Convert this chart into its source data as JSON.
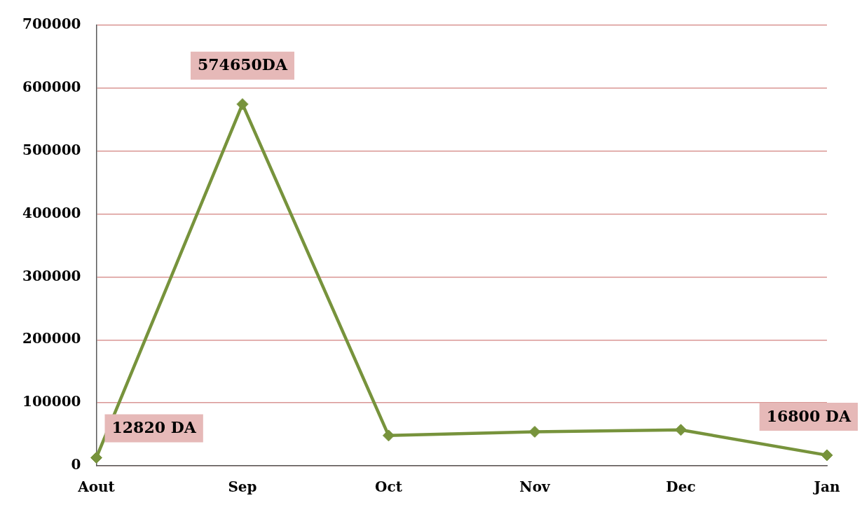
{
  "chart_data": {
    "type": "line",
    "categories": [
      "Aout",
      "Sep",
      "Oct",
      "Nov",
      "Dec",
      "Jan"
    ],
    "series": [
      {
        "color": "#77933c",
        "values": [
          12820,
          574650,
          48000,
          54000,
          57000,
          16800
        ],
        "value_labels": [
          "12820 DA",
          "574650DA",
          null,
          null,
          null,
          "16800 DA"
        ]
      }
    ],
    "ylim": [
      0,
      700000
    ],
    "yticks": [
      0,
      100000,
      200000,
      300000,
      400000,
      500000,
      600000,
      700000
    ],
    "grid": "y",
    "legend": false,
    "marker": "diamond",
    "line_style": "solid"
  }
}
